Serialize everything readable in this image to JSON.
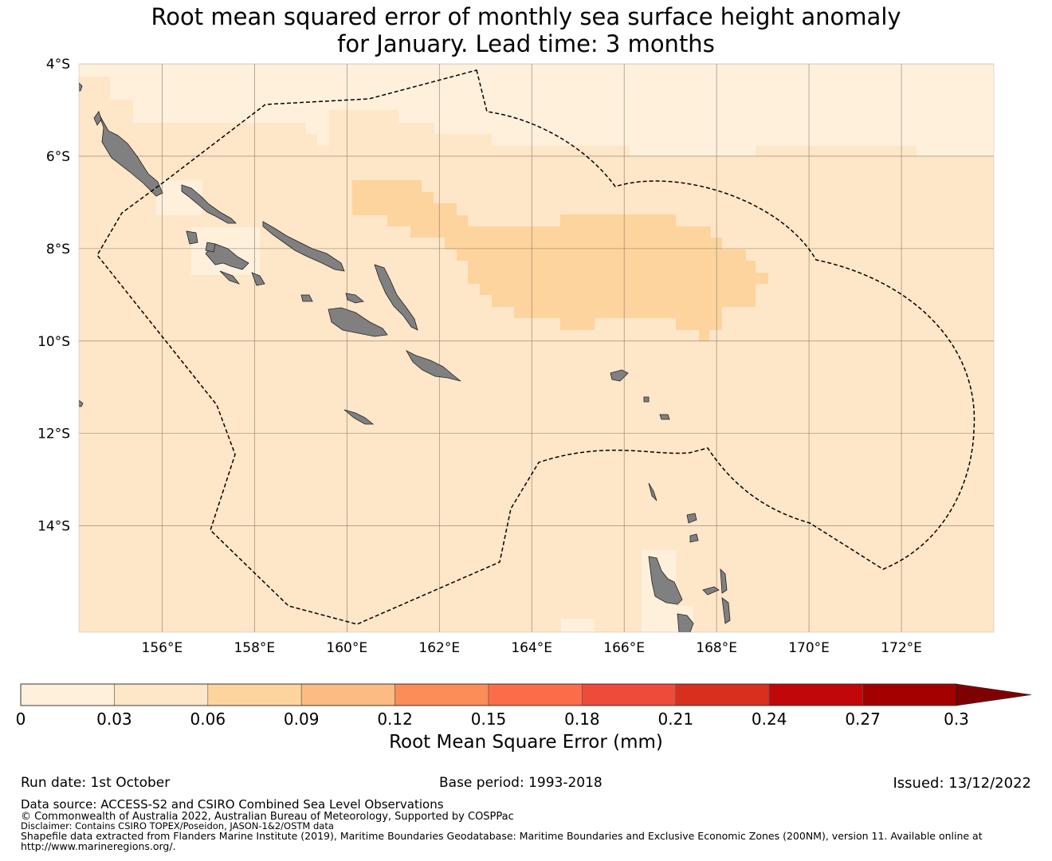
{
  "title": {
    "line1": "Root mean squared error of monthly sea surface height anomaly",
    "line2": "for January. Lead time: 3 months"
  },
  "map": {
    "lat_ticks": [
      "4°S",
      "6°S",
      "8°S",
      "10°S",
      "12°S",
      "14°S"
    ],
    "lon_ticks": [
      "156°E",
      "158°E",
      "160°E",
      "162°E",
      "164°E",
      "166°E",
      "168°E",
      "170°E",
      "172°E"
    ],
    "extent": {
      "lon_min": 154.2,
      "lon_max": 174.0,
      "lat_top": -4.0,
      "lat_bottom": -16.3
    },
    "land_color": "#808080",
    "boundary_style": "dashed black line (Solomon Islands EEZ)",
    "field_colors": {
      "band_0_0.03": "#fff0dc",
      "band_0.03_0.06": "#fee6c8",
      "band_0.06_0.09": "#fdd49e"
    }
  },
  "colorbar": {
    "title": "Root Mean Square Error (mm)",
    "tick_labels": [
      "0",
      "0.03",
      "0.06",
      "0.09",
      "0.12",
      "0.15",
      "0.18",
      "0.21",
      "0.24",
      "0.27",
      "0.3"
    ],
    "colors": [
      "#fff0dc",
      "#fee6c8",
      "#fdd49e",
      "#fdbb84",
      "#fc8d59",
      "#fc6c4a",
      "#ef4b3a",
      "#d7301f",
      "#c2070a",
      "#a50000"
    ],
    "extend_color": "#7f0000"
  },
  "footer": {
    "run_date": "Run date: 1st October",
    "base_period": "Base period: 1993-2018",
    "issued": "Issued: 13/12/2022",
    "data_source": "Data source: ACCESS-S2 and CSIRO Combined Sea Level Observations",
    "copyright": "© Commonwealth of Australia 2022, Australian Bureau of Meteorology, Supported by COSPPac",
    "disclaimer": "Disclaimer: Contains CSIRO TOPEX/Poseidon, JASON-1&2/OSTM data",
    "shapefile": "Shapefile data extracted from Flanders Marine Institute (2019), Maritime Boundaries Geodatabase: Maritime Boundaries and Exclusive Economic Zones (200NM), version 11. Available online at",
    "url": "http://www.marineregions.org/."
  }
}
